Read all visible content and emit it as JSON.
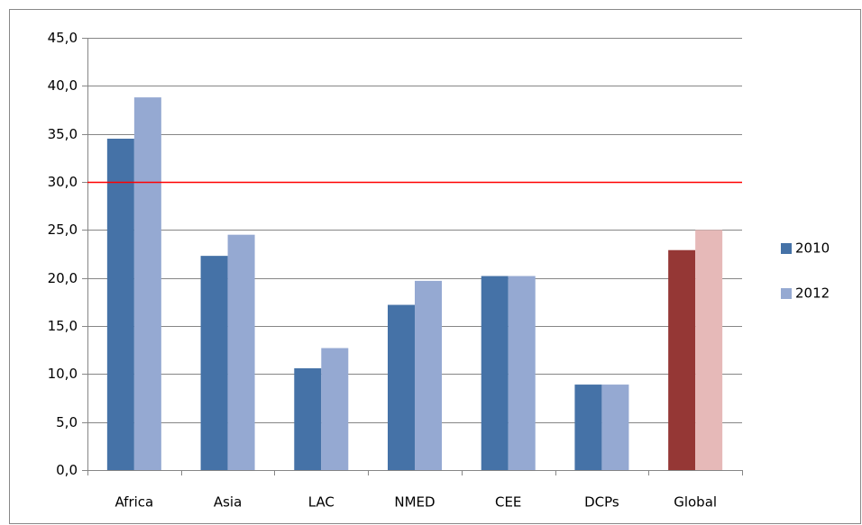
{
  "chart_data": {
    "type": "bar",
    "categories": [
      "Africa",
      "Asia",
      "LAC",
      "NMED",
      "CEE",
      "DCPs",
      "Global"
    ],
    "series": [
      {
        "name": "2010",
        "color": "#4572a7",
        "values": [
          34.5,
          22.3,
          10.6,
          17.2,
          20.2,
          8.9,
          22.9
        ],
        "colors": [
          "#4572a7",
          "#4572a7",
          "#4572a7",
          "#4572a7",
          "#4572a7",
          "#4572a7",
          "#953735"
        ]
      },
      {
        "name": "2012",
        "color": "#95a9d2",
        "values": [
          38.8,
          24.5,
          12.7,
          19.7,
          20.2,
          8.9,
          25.0
        ],
        "colors": [
          "#95a9d2",
          "#95a9d2",
          "#95a9d2",
          "#95a9d2",
          "#95a9d2",
          "#95a9d2",
          "#e6b9b8"
        ]
      }
    ],
    "ylim": [
      0,
      45
    ],
    "yticks": [
      {
        "value": 0,
        "label": "0,0"
      },
      {
        "value": 5,
        "label": "5,0"
      },
      {
        "value": 10,
        "label": "10,0"
      },
      {
        "value": 15,
        "label": "15,0"
      },
      {
        "value": 20,
        "label": "20,0"
      },
      {
        "value": 25,
        "label": "25,0"
      },
      {
        "value": 30,
        "label": "30,0"
      },
      {
        "value": 35,
        "label": "35,0"
      },
      {
        "value": 40,
        "label": "40,0"
      },
      {
        "value": 45,
        "label": "45,0"
      }
    ],
    "grid": true,
    "reference_line": {
      "value": 30,
      "color": "#ff0000"
    },
    "legend": "right"
  }
}
